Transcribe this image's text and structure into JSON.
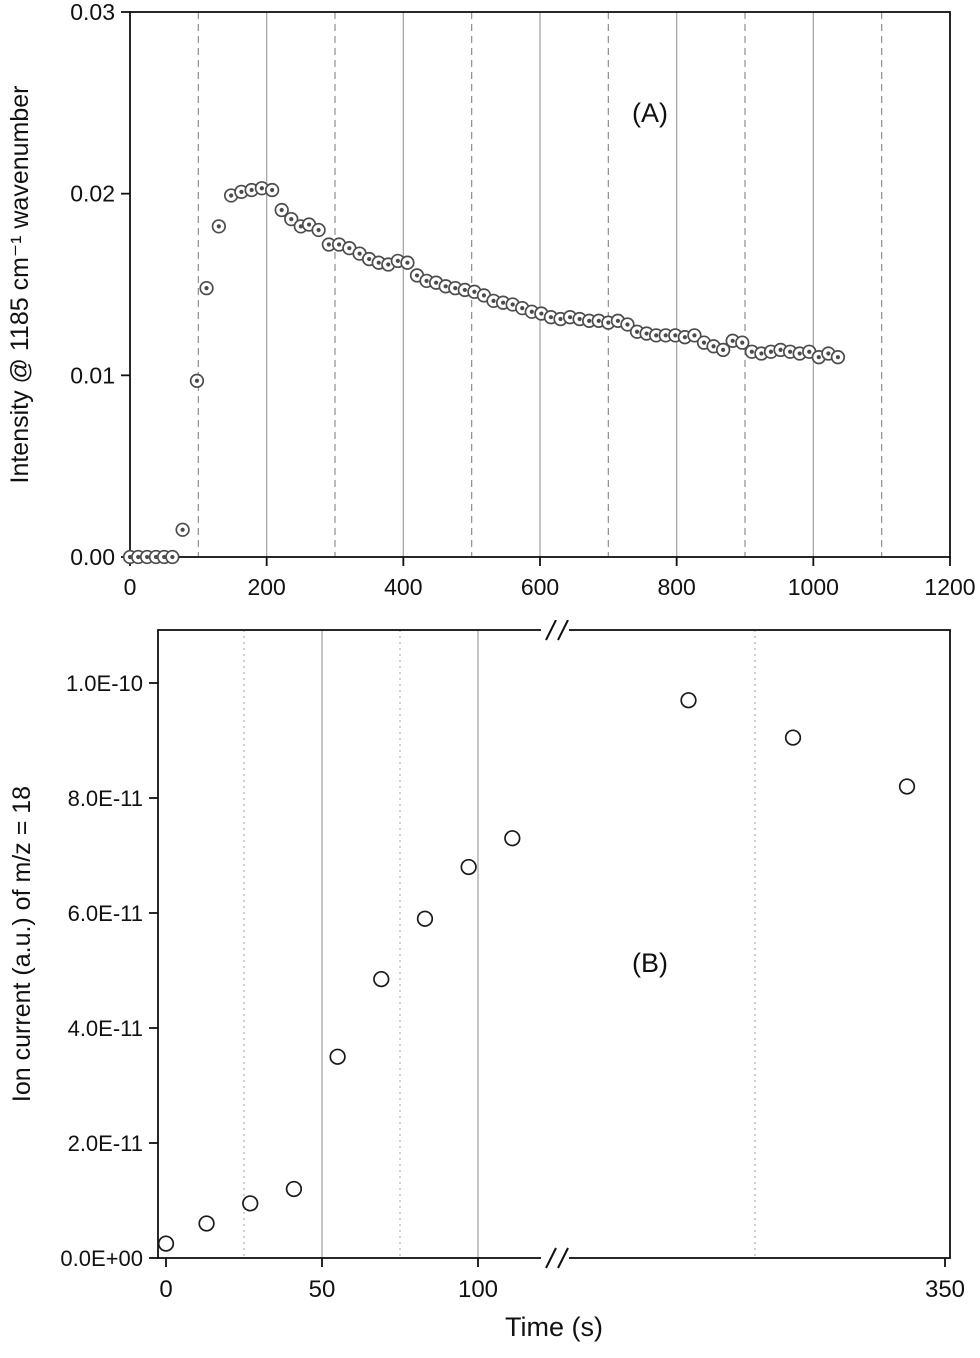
{
  "figure": {
    "panel_a_label": "(A)",
    "panel_b_label": "(B)"
  },
  "chart_data": [
    {
      "type": "scatter",
      "panel_label": "(A)",
      "title": "",
      "xlabel": "",
      "ylabel": "Intensity @ 1185 cm⁻¹ wavenumber",
      "xlim": [
        0,
        1200
      ],
      "ylim": [
        0,
        0.03
      ],
      "xticks": [
        0,
        200,
        400,
        600,
        800,
        1000,
        1200
      ],
      "xtick_labels": [
        "0",
        "200",
        "400",
        "600",
        "800",
        "1000",
        "1200"
      ],
      "ytick_values": [
        0,
        0.01,
        0.02,
        0.03
      ],
      "ytick_labels": [
        "0.00",
        "0.01",
        "0.02",
        "0.03"
      ],
      "grid": {
        "solid_x": [
          200,
          400,
          600,
          800,
          1000
        ],
        "dashed_x": [
          100,
          300,
          500,
          700,
          900,
          1100
        ]
      },
      "marker": "circle-with-center-dot",
      "points": [
        [
          0,
          0
        ],
        [
          12,
          0
        ],
        [
          25,
          0
        ],
        [
          38,
          0
        ],
        [
          50,
          0
        ],
        [
          62,
          0
        ],
        [
          77,
          0.0015
        ],
        [
          98,
          0.0097
        ],
        [
          112,
          0.0148
        ],
        [
          130,
          0.0182
        ],
        [
          148,
          0.0199
        ],
        [
          163,
          0.0201
        ],
        [
          178,
          0.0202
        ],
        [
          193,
          0.0203
        ],
        [
          208,
          0.0202
        ],
        [
          222,
          0.0191
        ],
        [
          236,
          0.0186
        ],
        [
          250,
          0.0182
        ],
        [
          262,
          0.0183
        ],
        [
          276,
          0.018
        ],
        [
          291,
          0.0172
        ],
        [
          306,
          0.0172
        ],
        [
          321,
          0.017
        ],
        [
          336,
          0.0167
        ],
        [
          350,
          0.0164
        ],
        [
          364,
          0.0162
        ],
        [
          378,
          0.0161
        ],
        [
          392,
          0.0163
        ],
        [
          406,
          0.0162
        ],
        [
          420,
          0.0155
        ],
        [
          434,
          0.0152
        ],
        [
          448,
          0.0151
        ],
        [
          462,
          0.0149
        ],
        [
          476,
          0.0148
        ],
        [
          490,
          0.0147
        ],
        [
          504,
          0.0146
        ],
        [
          518,
          0.0144
        ],
        [
          532,
          0.0141
        ],
        [
          546,
          0.014
        ],
        [
          560,
          0.0139
        ],
        [
          574,
          0.0137
        ],
        [
          588,
          0.0135
        ],
        [
          602,
          0.0134
        ],
        [
          616,
          0.0132
        ],
        [
          630,
          0.0131
        ],
        [
          644,
          0.0132
        ],
        [
          658,
          0.0131
        ],
        [
          672,
          0.013
        ],
        [
          686,
          0.013
        ],
        [
          700,
          0.0129
        ],
        [
          714,
          0.013
        ],
        [
          728,
          0.0128
        ],
        [
          742,
          0.0124
        ],
        [
          756,
          0.0123
        ],
        [
          770,
          0.0122
        ],
        [
          784,
          0.0122
        ],
        [
          798,
          0.0122
        ],
        [
          812,
          0.0121
        ],
        [
          826,
          0.0122
        ],
        [
          840,
          0.0118
        ],
        [
          854,
          0.0116
        ],
        [
          868,
          0.0114
        ],
        [
          882,
          0.0119
        ],
        [
          896,
          0.0118
        ],
        [
          910,
          0.0113
        ],
        [
          924,
          0.0112
        ],
        [
          938,
          0.0113
        ],
        [
          952,
          0.0114
        ],
        [
          966,
          0.0113
        ],
        [
          980,
          0.0112
        ],
        [
          994,
          0.0113
        ],
        [
          1008,
          0.011
        ],
        [
          1022,
          0.0112
        ],
        [
          1036,
          0.011
        ]
      ]
    },
    {
      "type": "scatter",
      "panel_label": "(B)",
      "title": "",
      "xlabel": "Time (s)",
      "ylabel": "Ion current (a.u.) of m/z = 18",
      "ylim": [
        0,
        1.09e-10
      ],
      "ytick_values": [
        0,
        2e-11,
        4e-11,
        6e-11,
        8e-11,
        1e-10
      ],
      "ytick_labels": [
        "0.0E+00",
        "2.0E-11",
        "4.0E-11",
        "6.0E-11",
        "8.0E-11",
        "1.0E-10"
      ],
      "axis_break": {
        "left_segment_max": 125,
        "right_segment_min": 150
      },
      "xticks_left": [
        0,
        50,
        100
      ],
      "xtick_labels_left": [
        "0",
        "50",
        "100"
      ],
      "xticks_right": [
        350
      ],
      "xtick_labels_right": [
        "350"
      ],
      "grid": {
        "solid_x_left": [
          50,
          100
        ],
        "dotted_x_left": [
          25,
          75
        ],
        "dotted_x_right": [
          250
        ]
      },
      "marker": "open-circle",
      "points_left": [
        [
          0,
          2.5e-12
        ],
        [
          13,
          6e-12
        ],
        [
          27,
          9.5e-12
        ],
        [
          41,
          1.2e-11
        ],
        [
          55,
          3.5e-11
        ],
        [
          69,
          4.85e-11
        ],
        [
          83,
          5.9e-11
        ],
        [
          97,
          6.8e-11
        ],
        [
          111,
          7.3e-11
        ]
      ],
      "points_right": [
        [
          215,
          9.7e-11
        ],
        [
          270,
          9.05e-11
        ],
        [
          330,
          8.2e-11
        ]
      ]
    }
  ],
  "colors": {
    "axis": "#111111",
    "tick_text": "#111111",
    "solid_grid": "#a8a8a8",
    "dashed_grid": "#8f8f8f",
    "dotted_grid": "#b0b0b0",
    "marker_a": "#4c4c4c",
    "marker_b": "#1a1a1a",
    "background": "#ffffff"
  }
}
